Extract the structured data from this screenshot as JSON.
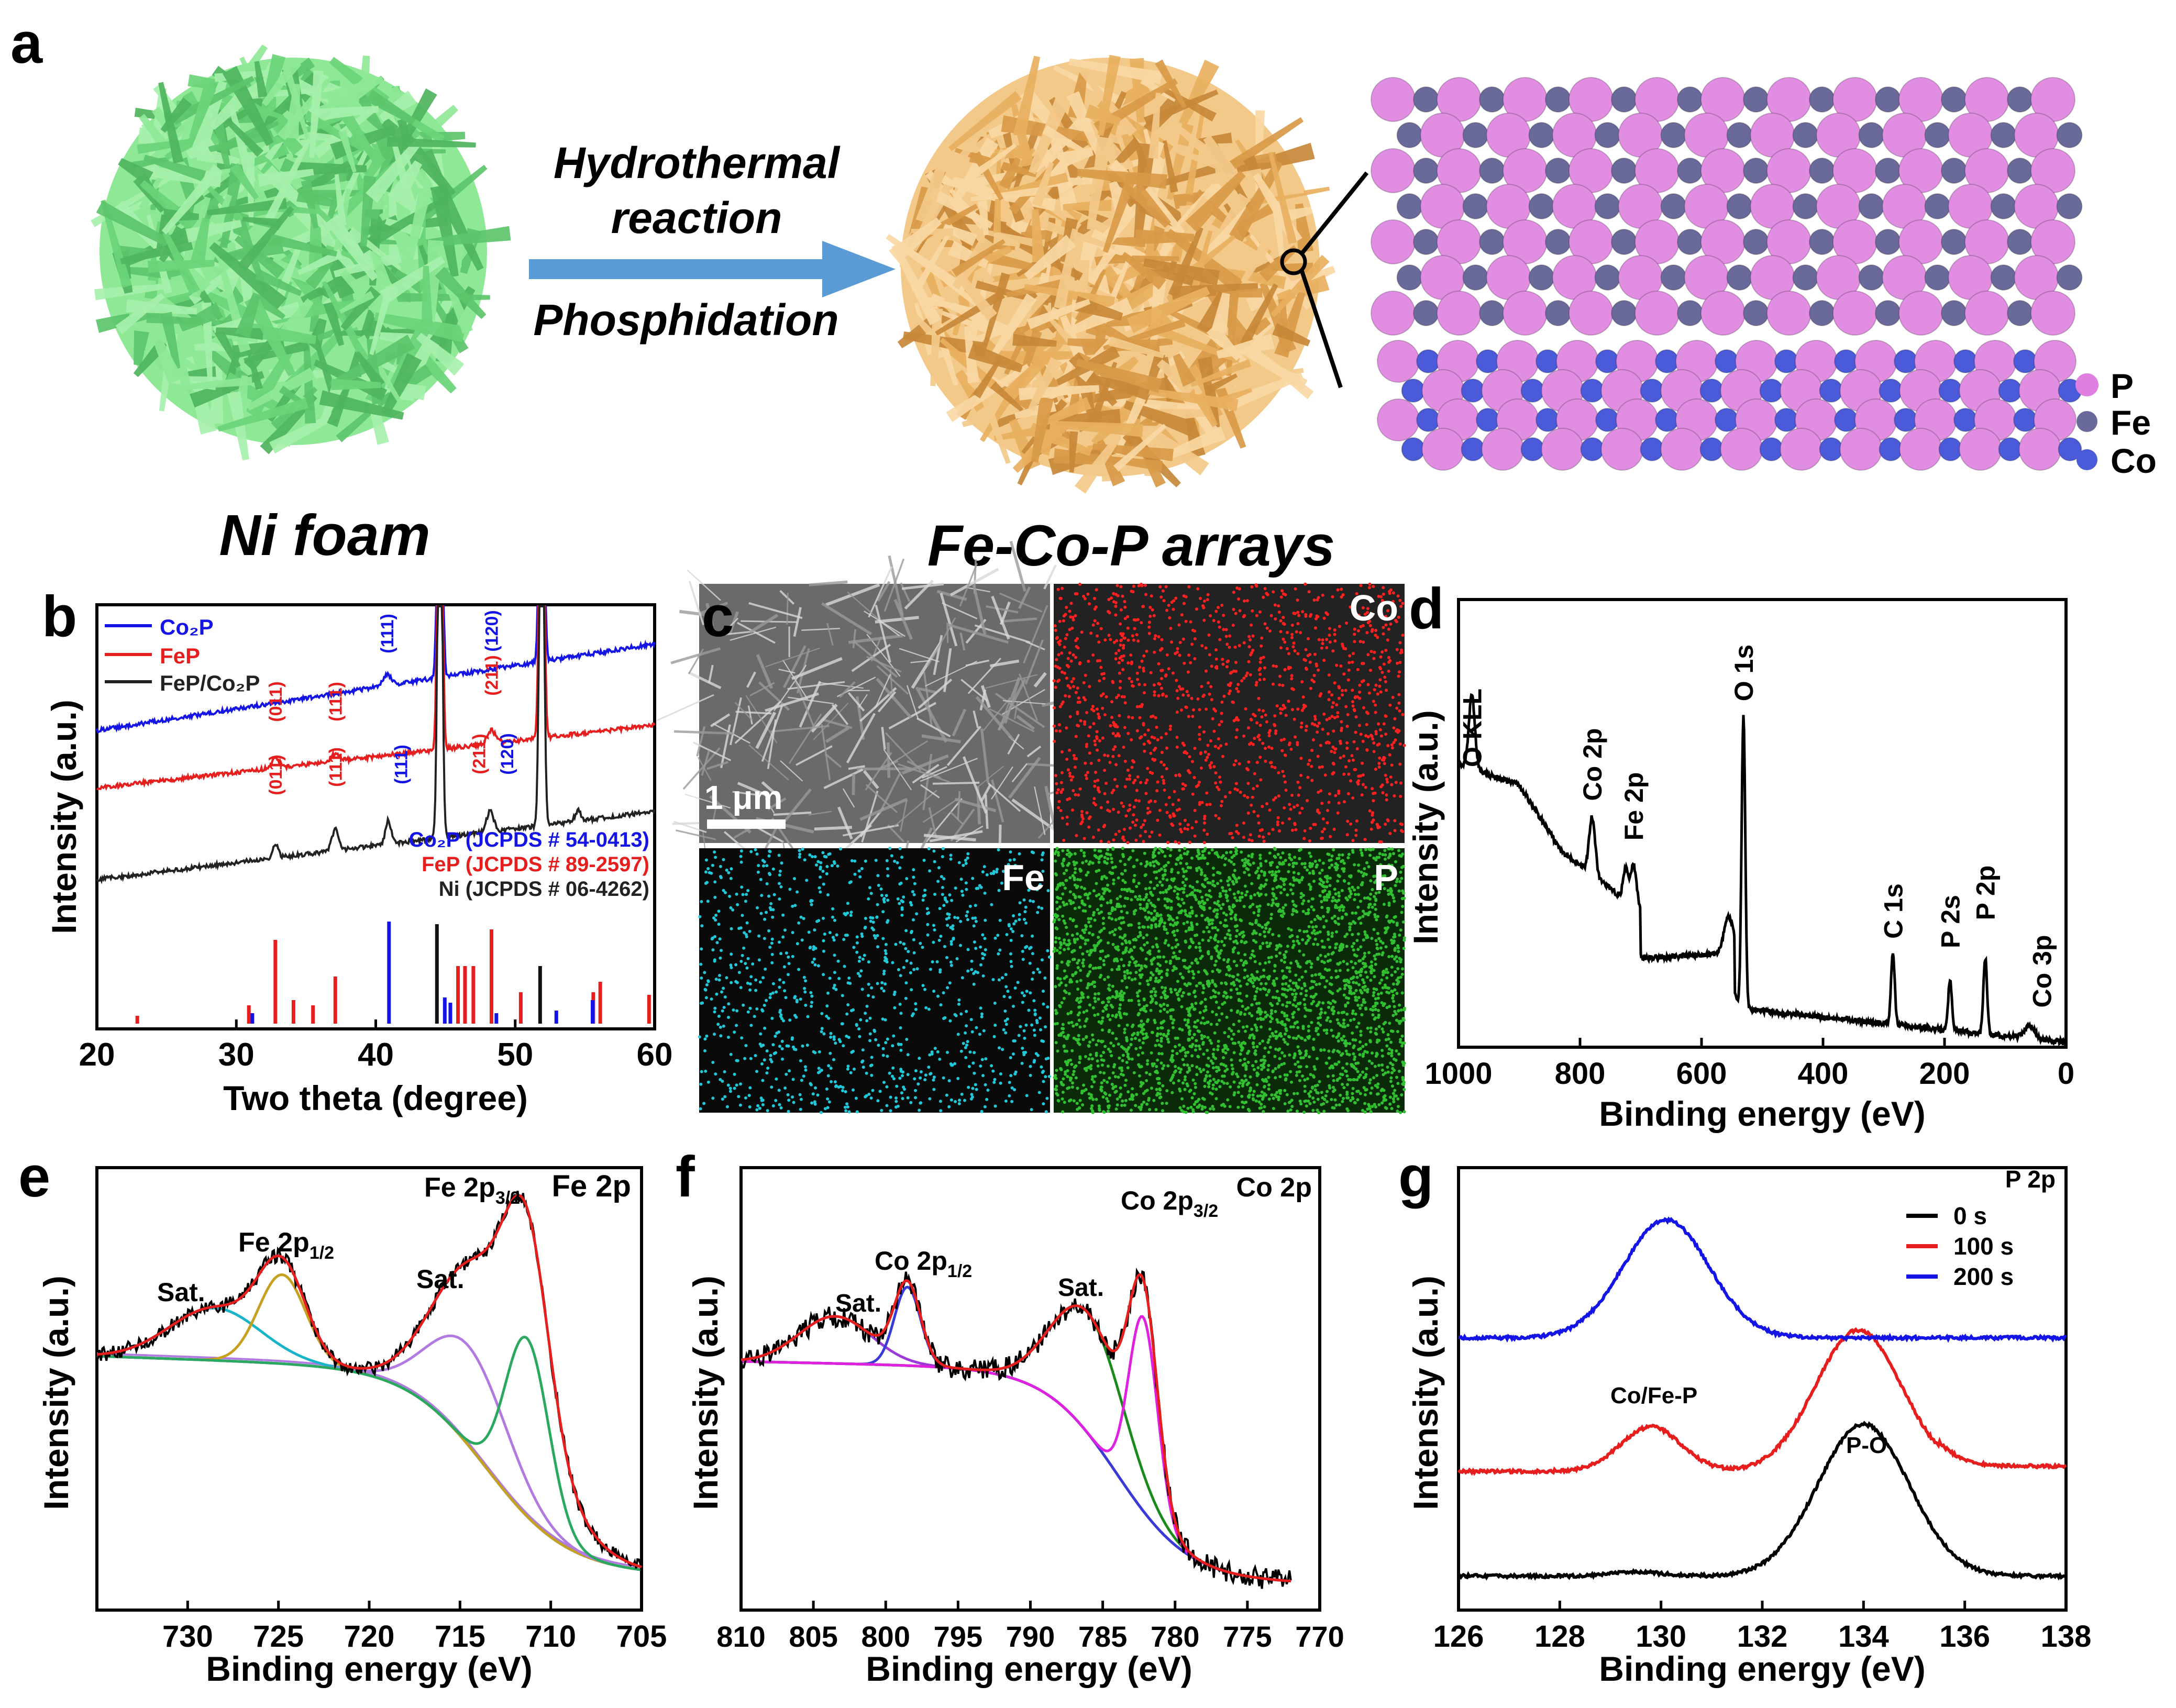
{
  "colors": {
    "blue": "#1414e6",
    "red": "#e61e1e",
    "black": "#222222",
    "green_foam": "#7fe08a",
    "orange_foam": "#f2c27a",
    "arrow": "#5b9bd5",
    "atom_P": "#e07fe0",
    "atom_Fe": "#6a6a9a",
    "atom_Co": "#4a5ad8",
    "eds_Co": "#ff2020",
    "eds_Fe": "#20c8d8",
    "eds_P": "#30c030",
    "teal": "#18b4c8",
    "gold": "#c8a020",
    "magenta": "#e020e0",
    "purple": "#9a3ad8",
    "dkgreen": "#1a8a1a",
    "ltpurple": "#b07ae0",
    "green2": "#2aa860"
  },
  "panel_a": {
    "letter": "a",
    "left_label": "Ni foam",
    "right_label": "Fe-Co-P arrays",
    "arrow_top1": "Hydrothermal",
    "arrow_top2": "reaction",
    "arrow_bottom": "Phosphidation",
    "legend": [
      "P",
      "Fe",
      "Co"
    ]
  },
  "panel_b": {
    "letter": "b",
    "legend": [
      {
        "name": "Co₂P",
        "color": "blue"
      },
      {
        "name": "FeP",
        "color": "red"
      },
      {
        "name": "FeP/Co₂P",
        "color": "black"
      }
    ],
    "ref_blue": "Co₂P (JCPDS # 54-0413)",
    "ref_red": "FeP (JCPDS # 89-2597)",
    "ref_black": "Ni (JCPDS # 06-4262)",
    "peak_labels_blue_top": [
      "(111)",
      "(120)"
    ],
    "peak_labels_red": [
      "(011)",
      "(111)",
      "(211)"
    ],
    "peak_labels_black": [
      "(011)",
      "(111)",
      "(111)",
      "(211)",
      "(120)"
    ],
    "chart_data": {
      "type": "line",
      "xlabel": "Two theta (degree)",
      "ylabel": "Intensity (a.u.)",
      "xlim": [
        20,
        60
      ],
      "xticks": [
        "20",
        "30",
        "40",
        "50",
        "60"
      ]
    }
  },
  "panel_c": {
    "letter": "c",
    "scale_bar": "1 μm",
    "maps": [
      "Co",
      "Fe",
      "P"
    ]
  },
  "panel_d": {
    "letter": "d",
    "chart_data": {
      "type": "line",
      "xlabel": "Binding energy (eV)",
      "ylabel": "Intensity (a.u.)",
      "xlim": [
        1000,
        0
      ],
      "xticks": [
        "1000",
        "800",
        "600",
        "400",
        "200",
        "0"
      ],
      "peaks": [
        "O KLL",
        "Co 2p",
        "Fe 2p",
        "O 1s",
        "C 1s",
        "P 2s",
        "P 2p",
        "Co 3p"
      ]
    }
  },
  "panel_e": {
    "letter": "e",
    "title": "Fe 2p",
    "labels": [
      "Fe 2p",
      "Fe 2p",
      "Sat.",
      "Sat."
    ],
    "sub_32": "3/2",
    "sub_12": "1/2",
    "chart_data": {
      "type": "line",
      "xlabel": "Binding energy (eV)",
      "ylabel": "Intensity (a.u.)",
      "xlim": [
        735,
        705
      ],
      "xticks": [
        "730",
        "725",
        "720",
        "715",
        "710",
        "705"
      ]
    }
  },
  "panel_f": {
    "letter": "f",
    "title": "Co 2p",
    "labels": [
      "Co 2p",
      "Co 2p",
      "Sat.",
      "Sat."
    ],
    "sub_32": "3/2",
    "sub_12": "1/2",
    "chart_data": {
      "type": "line",
      "xlabel": "Binding energy (eV)",
      "ylabel": "Intensity (a.u.)",
      "xlim": [
        810,
        770
      ],
      "xticks": [
        "810",
        "805",
        "800",
        "795",
        "790",
        "785",
        "780",
        "775",
        "770"
      ]
    }
  },
  "panel_g": {
    "letter": "g",
    "title": "P 2p",
    "legend": [
      "0 s",
      "100 s",
      "200 s"
    ],
    "labels": [
      "Co/Fe-P",
      "P-O"
    ],
    "chart_data": {
      "type": "line",
      "xlabel": "Binding energy (eV)",
      "ylabel": "Intensity (a.u.)",
      "xlim": [
        126,
        138
      ],
      "xticks": [
        "126",
        "128",
        "130",
        "132",
        "134",
        "136",
        "138"
      ],
      "series": [
        {
          "name": "0 s",
          "peaks": [
            134.0
          ]
        },
        {
          "name": "100 s",
          "peaks": [
            129.8,
            134.0
          ]
        },
        {
          "name": "200 s",
          "peaks": [
            130.0
          ]
        }
      ]
    }
  }
}
